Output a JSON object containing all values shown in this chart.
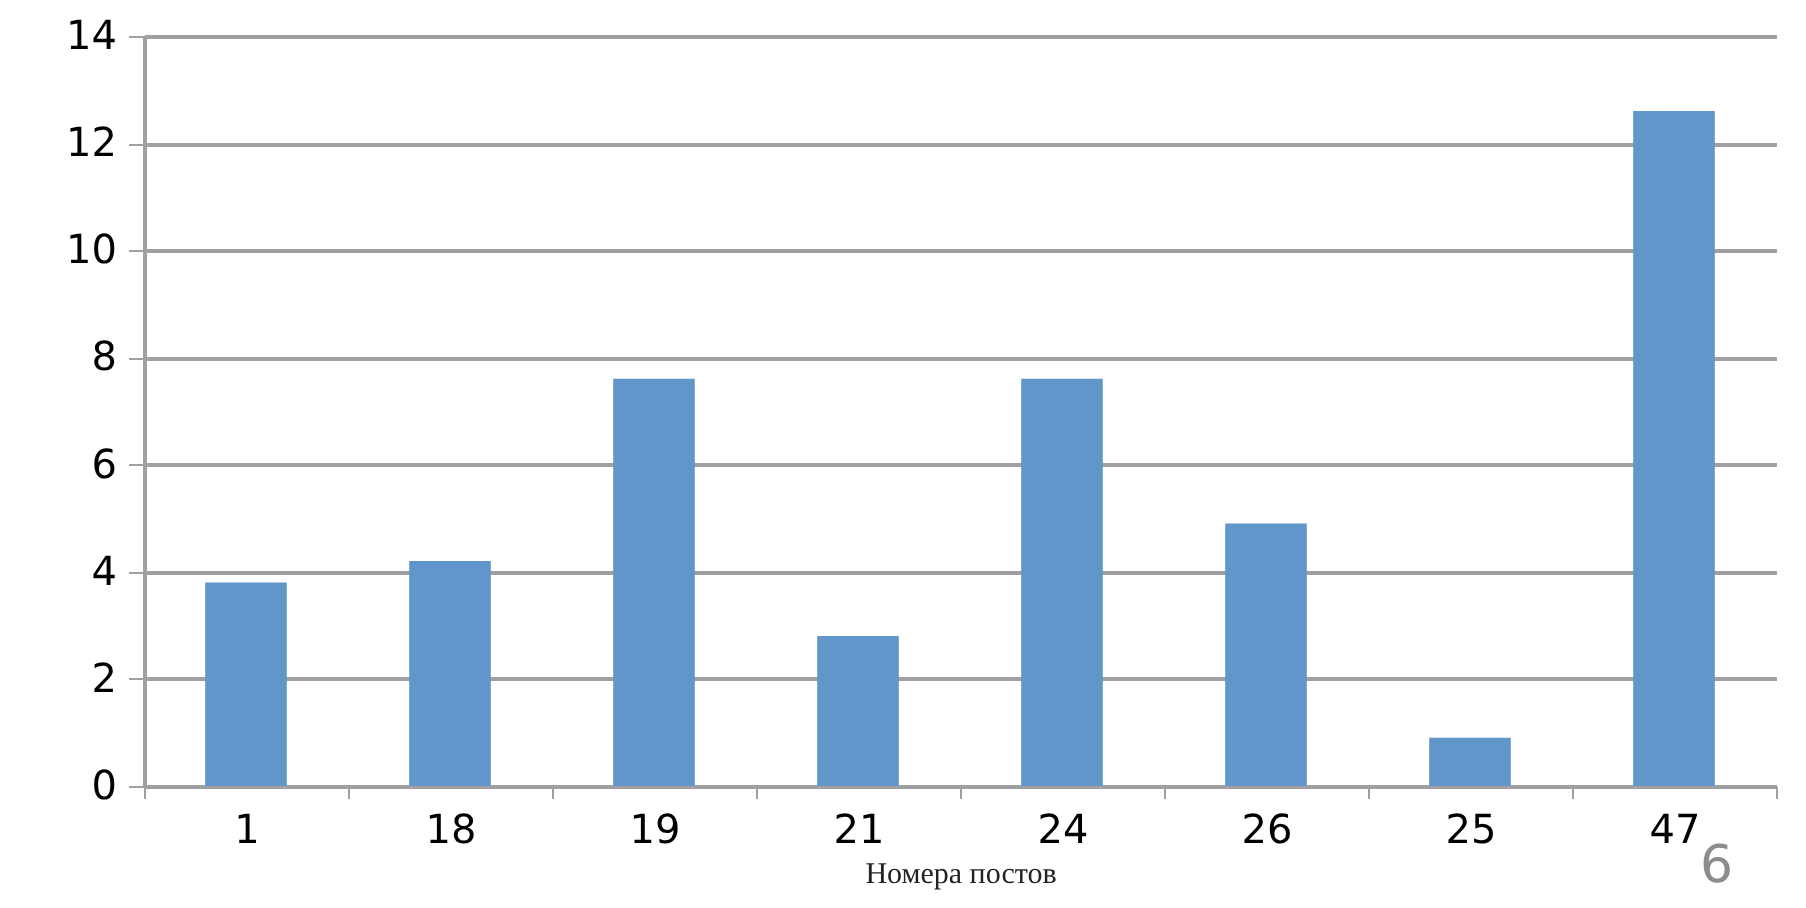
{
  "chart_data": {
    "type": "bar",
    "xlabel": "Номера постов",
    "categories": [
      "1",
      "18",
      "19",
      "21",
      "24",
      "26",
      "25",
      "47"
    ],
    "values": [
      3.8,
      4.2,
      7.6,
      2.8,
      7.6,
      4.9,
      0.9,
      12.6
    ],
    "color": "#6096c9",
    "ylim": [
      0,
      14
    ],
    "yticks": [
      0,
      2,
      4,
      6,
      8,
      10,
      12,
      14
    ],
    "grid": "y",
    "annotations": [
      "6"
    ]
  }
}
